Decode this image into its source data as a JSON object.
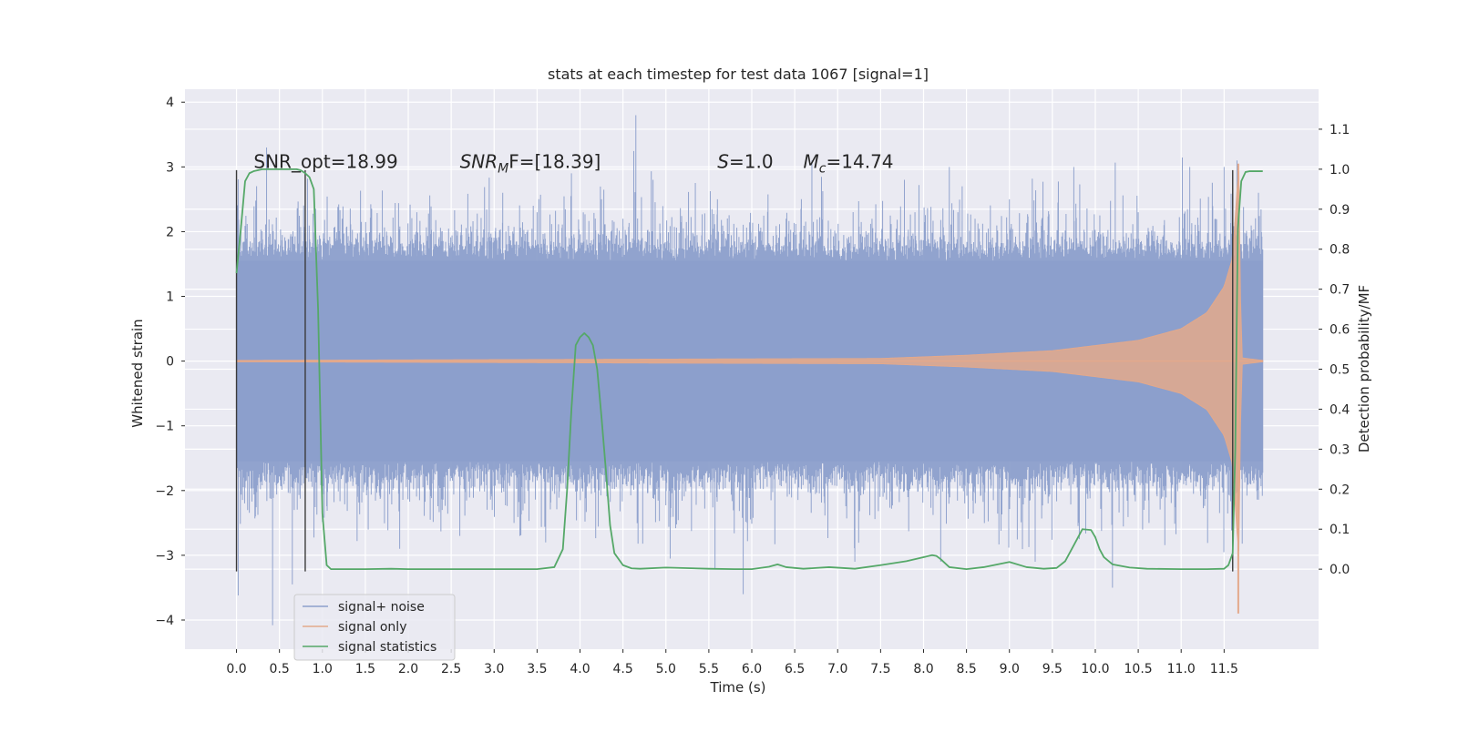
{
  "chart_data": {
    "type": "line",
    "title": "stats at each timestep for test data 1067 [signal=1]",
    "xlabel": "Time (s)",
    "ylabel": "Whitened strain",
    "y2label": "Detection probability/MF",
    "xlim": [
      -0.6,
      12.6
    ],
    "ylim": [
      -4.45,
      4.2
    ],
    "y2lim": [
      -0.2,
      1.2
    ],
    "x_ticks": [
      0.0,
      0.5,
      1.0,
      1.5,
      2.0,
      2.5,
      3.0,
      3.5,
      4.0,
      4.5,
      5.0,
      5.5,
      6.0,
      6.5,
      7.0,
      7.5,
      8.0,
      8.5,
      9.0,
      9.5,
      10.0,
      10.5,
      11.0,
      11.5
    ],
    "x_tick_labels": [
      "0.0",
      "0.5",
      "1.0",
      "1.5",
      "2.0",
      "2.5",
      "3.0",
      "3.5",
      "4.0",
      "4.5",
      "5.0",
      "5.5",
      "6.0",
      "6.5",
      "7.0",
      "7.5",
      "8.0",
      "8.5",
      "9.0",
      "9.5",
      "10.0",
      "10.5",
      "11.0",
      "11.5"
    ],
    "y_ticks": [
      4,
      3,
      2,
      1,
      0,
      -1,
      -2,
      -3,
      -4
    ],
    "y_tick_labels": [
      "4",
      "3",
      "2",
      "1",
      "0",
      "−1",
      "−2",
      "−3",
      "−4"
    ],
    "y2_ticks": [
      1.1,
      1.0,
      0.9,
      0.8,
      0.7,
      0.6,
      0.5,
      0.4,
      0.3,
      0.2,
      0.1,
      0.0
    ],
    "y2_tick_labels": [
      "1.1",
      "1.0",
      "0.9",
      "0.8",
      "0.7",
      "0.6",
      "0.5",
      "0.4",
      "0.3",
      "0.2",
      "0.1",
      "0.0"
    ],
    "grid": true,
    "legend_position": "lower-left",
    "series": [
      {
        "name": "signal+ noise",
        "color": "#8c9fcb",
        "axis": "left",
        "x_range": [
          0.0,
          11.95
        ],
        "envelope": [
          [
            0.0,
            1.55
          ],
          [
            2.0,
            1.55
          ],
          [
            4.0,
            1.55
          ],
          [
            6.0,
            1.55
          ],
          [
            8.0,
            1.55
          ],
          [
            10.0,
            1.55
          ],
          [
            11.95,
            1.55
          ]
        ],
        "peaks": [
          [
            0.02,
            -3.62
          ],
          [
            0.22,
            -2.4
          ],
          [
            0.35,
            3.3
          ],
          [
            0.42,
            -4.08
          ],
          [
            0.65,
            -3.45
          ],
          [
            1.23,
            2.2
          ],
          [
            1.9,
            -2.9
          ],
          [
            2.1,
            2.3
          ],
          [
            2.6,
            -2.7
          ],
          [
            3.1,
            2.6
          ],
          [
            3.3,
            -2.7
          ],
          [
            3.5,
            2.3
          ],
          [
            3.6,
            -2.8
          ],
          [
            3.9,
            2.9
          ],
          [
            4.25,
            2.5
          ],
          [
            4.5,
            2.2
          ],
          [
            4.65,
            3.8
          ],
          [
            4.85,
            2.8
          ],
          [
            5.05,
            -3.05
          ],
          [
            5.6,
            2.5
          ],
          [
            5.9,
            -3.6
          ],
          [
            6.4,
            2.2
          ],
          [
            6.7,
            3.1
          ],
          [
            7.2,
            -3.1
          ],
          [
            7.4,
            2.2
          ],
          [
            7.9,
            2.3
          ],
          [
            8.2,
            -3.1
          ],
          [
            8.3,
            3.0
          ],
          [
            8.45,
            2.7
          ],
          [
            8.6,
            2.2
          ],
          [
            9.0,
            2.5
          ],
          [
            9.3,
            -3.1
          ],
          [
            9.45,
            2.1
          ],
          [
            9.75,
            3.0
          ],
          [
            10.2,
            -3.5
          ],
          [
            10.5,
            2.3
          ],
          [
            10.8,
            2.1
          ],
          [
            11.1,
            3.0
          ],
          [
            11.4,
            2.2
          ],
          [
            11.5,
            3.0
          ],
          [
            11.65,
            3.1
          ],
          [
            11.9,
            2.6
          ]
        ]
      },
      {
        "name": "signal only",
        "color": "#e3a98b",
        "axis": "left",
        "amplitude_points": [
          [
            0.0,
            0.01
          ],
          [
            7.5,
            0.04
          ],
          [
            8.5,
            0.09
          ],
          [
            9.5,
            0.16
          ],
          [
            10.5,
            0.32
          ],
          [
            11.0,
            0.5
          ],
          [
            11.3,
            0.75
          ],
          [
            11.5,
            1.15
          ],
          [
            11.6,
            1.6
          ],
          [
            11.67,
            3.05
          ],
          [
            11.7,
            0.05
          ],
          [
            11.95,
            0.01
          ]
        ]
      },
      {
        "name": "signal statistics",
        "color": "#55a868",
        "axis": "right",
        "x": [
          0.0,
          0.05,
          0.1,
          0.15,
          0.2,
          0.3,
          0.5,
          0.6,
          0.7,
          0.75,
          0.8,
          0.85,
          0.9,
          0.95,
          1.0,
          1.05,
          1.1,
          1.5,
          1.8,
          2.0,
          2.5,
          3.0,
          3.5,
          3.7,
          3.8,
          3.85,
          3.9,
          3.95,
          4.0,
          4.05,
          4.1,
          4.15,
          4.2,
          4.25,
          4.3,
          4.35,
          4.4,
          4.5,
          4.6,
          4.7,
          5.0,
          5.5,
          5.8,
          6.0,
          6.2,
          6.3,
          6.4,
          6.6,
          6.9,
          7.2,
          7.5,
          7.8,
          8.0,
          8.1,
          8.15,
          8.2,
          8.3,
          8.5,
          8.7,
          9.0,
          9.2,
          9.4,
          9.55,
          9.65,
          9.75,
          9.85,
          9.95,
          10.0,
          10.05,
          10.1,
          10.2,
          10.4,
          10.6,
          11.0,
          11.3,
          11.5,
          11.55,
          11.6,
          11.63,
          11.66,
          11.7,
          11.75,
          11.8,
          11.9,
          11.95
        ],
        "y": [
          0.74,
          0.85,
          0.97,
          0.99,
          0.995,
          1.0,
          1.0,
          1.0,
          1.0,
          0.997,
          0.99,
          0.98,
          0.95,
          0.65,
          0.14,
          0.01,
          0.0,
          0.0,
          0.001,
          0.0,
          0.0,
          0.0,
          0.0,
          0.005,
          0.05,
          0.2,
          0.4,
          0.56,
          0.58,
          0.59,
          0.58,
          0.56,
          0.5,
          0.38,
          0.25,
          0.11,
          0.04,
          0.01,
          0.002,
          0.001,
          0.004,
          0.001,
          0.0,
          0.0,
          0.006,
          0.012,
          0.005,
          0.001,
          0.005,
          0.001,
          0.01,
          0.02,
          0.03,
          0.035,
          0.033,
          0.025,
          0.005,
          0.0,
          0.005,
          0.018,
          0.005,
          0.001,
          0.003,
          0.02,
          0.06,
          0.1,
          0.098,
          0.08,
          0.05,
          0.03,
          0.012,
          0.004,
          0.001,
          0.0,
          0.0,
          0.001,
          0.01,
          0.04,
          0.3,
          0.85,
          0.97,
          0.993,
          0.995,
          0.995,
          0.995
        ]
      }
    ],
    "vertical_markers": {
      "color": "#3a3a3a",
      "x": [
        0.0,
        0.8,
        11.6
      ],
      "y_range": [
        -3.25,
        2.95
      ]
    },
    "annotations": [
      {
        "plain": "SNR_opt=18.99",
        "x": 0.2
      },
      {
        "prefix": "SNR",
        "sub": "M",
        "suffix": "F=[18.39]",
        "x": 2.6
      },
      {
        "prefix": "S",
        "suffix": "=1.0",
        "x": 5.6
      },
      {
        "prefix": "M",
        "sub": "c",
        "suffix": "=14.74",
        "x": 6.6
      }
    ]
  },
  "colors": {
    "plot_background": "#eaeaf2",
    "grid": "#ffffff",
    "noise": "#8c9fcb",
    "signal": "#e3a98b",
    "statistics": "#55a868"
  }
}
